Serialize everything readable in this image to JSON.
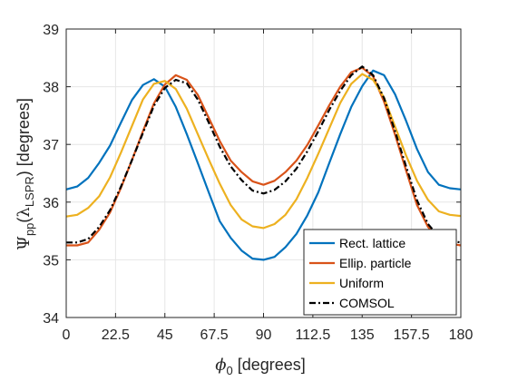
{
  "chart_data": {
    "type": "line",
    "xlabel": "ϕ0 [degrees]",
    "ylabel": "Ψpp(λLSPR) [degrees]",
    "xlim": [
      0,
      180
    ],
    "ylim": [
      34,
      39
    ],
    "xticks": [
      0,
      22.5,
      45,
      67.5,
      90,
      112.5,
      135,
      157.5,
      180
    ],
    "xtick_labels": [
      "0",
      "22.5",
      "45",
      "67.5",
      "90",
      "112.5",
      "135",
      "157.5",
      "180"
    ],
    "yticks": [
      34,
      35,
      36,
      37,
      38,
      39
    ],
    "ytick_labels": [
      "34",
      "35",
      "36",
      "37",
      "38",
      "39"
    ],
    "grid": true,
    "legend_position": "bottom-right",
    "x": [
      0,
      5,
      10,
      15,
      20,
      25,
      30,
      35,
      40,
      45,
      50,
      55,
      60,
      65,
      70,
      75,
      80,
      85,
      90,
      95,
      100,
      105,
      110,
      115,
      120,
      125,
      130,
      135,
      140,
      145,
      150,
      155,
      160,
      165,
      170,
      175,
      180
    ],
    "series": [
      {
        "name": "Rect. lattice",
        "color": "#0072BD",
        "dash": "solid",
        "values": [
          36.22,
          36.27,
          36.42,
          36.68,
          36.98,
          37.38,
          37.77,
          38.03,
          38.13,
          38.0,
          37.65,
          37.18,
          36.68,
          36.17,
          35.67,
          35.38,
          35.16,
          35.02,
          35.0,
          35.05,
          35.22,
          35.45,
          35.77,
          36.17,
          36.68,
          37.18,
          37.65,
          38.01,
          38.28,
          38.2,
          37.87,
          37.41,
          36.92,
          36.52,
          36.3,
          36.24,
          36.22
        ]
      },
      {
        "name": "Ellip. particle",
        "color": "#D95319",
        "dash": "solid",
        "values": [
          35.25,
          35.25,
          35.3,
          35.52,
          35.82,
          36.25,
          36.73,
          37.23,
          37.71,
          38.04,
          38.2,
          38.12,
          37.86,
          37.46,
          37.06,
          36.72,
          36.52,
          36.36,
          36.3,
          36.37,
          36.52,
          36.72,
          36.99,
          37.33,
          37.68,
          38.0,
          38.25,
          38.33,
          38.18,
          37.74,
          37.17,
          36.55,
          35.95,
          35.57,
          35.36,
          35.28,
          35.25
        ]
      },
      {
        "name": "Uniform",
        "color": "#EDB120",
        "dash": "solid",
        "values": [
          35.75,
          35.78,
          35.9,
          36.1,
          36.43,
          36.86,
          37.32,
          37.78,
          38.05,
          38.1,
          37.96,
          37.62,
          37.18,
          36.74,
          36.32,
          35.95,
          35.7,
          35.58,
          35.55,
          35.62,
          35.78,
          36.05,
          36.42,
          36.84,
          37.28,
          37.72,
          38.05,
          38.22,
          38.12,
          37.81,
          37.31,
          36.81,
          36.37,
          36.04,
          35.84,
          35.78,
          35.76
        ]
      },
      {
        "name": "COMSOL",
        "color": "#000000",
        "dash": "dashdot",
        "values": [
          35.3,
          35.3,
          35.36,
          35.57,
          35.86,
          36.27,
          36.73,
          37.2,
          37.67,
          37.98,
          38.12,
          38.06,
          37.78,
          37.38,
          36.96,
          36.62,
          36.38,
          36.2,
          36.15,
          36.21,
          36.36,
          36.58,
          36.88,
          37.23,
          37.6,
          37.93,
          38.2,
          38.35,
          38.2,
          37.8,
          37.23,
          36.62,
          36.03,
          35.62,
          35.4,
          35.33,
          35.3
        ]
      }
    ]
  }
}
